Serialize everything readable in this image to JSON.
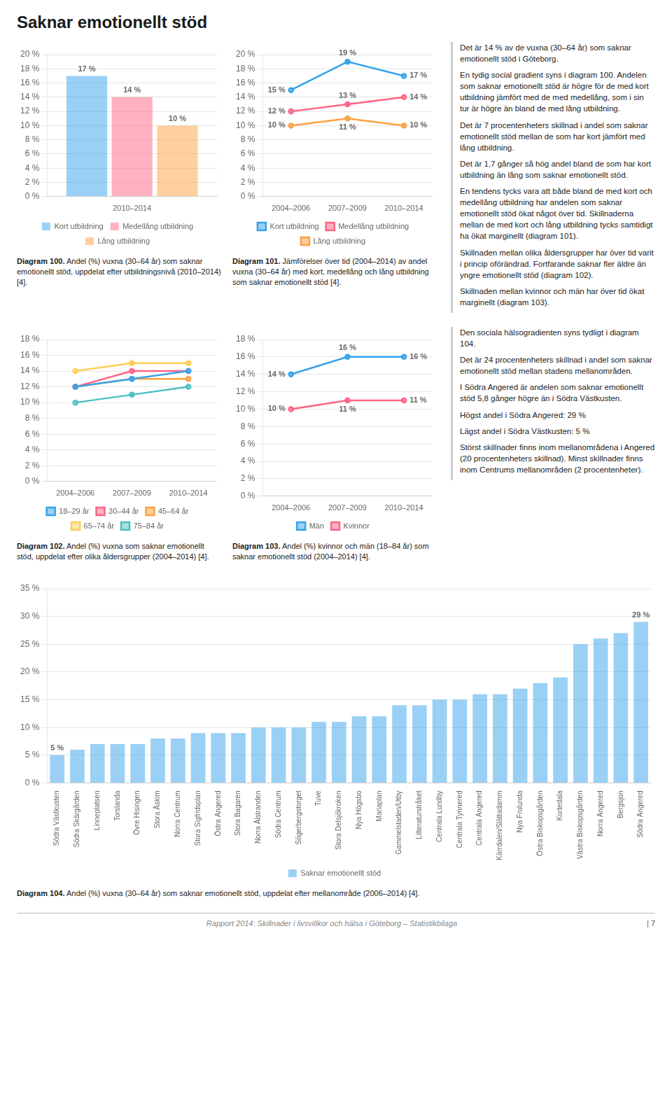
{
  "title": "Saknar emotionellt stöd",
  "annotations": [
    [
      "Det är 14 % av de vuxna (30–64 år) som saknar emotionellt stöd i Göteborg.",
      "En tydig social gradient syns i diagram 100. Andelen som saknar emotionellt stöd är högre för de med kort utbildning jämfört med de med medellång, som i sin tur är högre än bland de med lång utbildning.",
      "Det är 7 procentenheters skillnad i andel som saknar emotionellt stöd mellan de som har kort jämfört med lång utbildning.",
      "Det är 1,7 gånger så hög andel bland de som har kort utbildning än lång som saknar emotionellt stöd.",
      "En tendens tycks vara att både bland de med kort och medellång utbildning har andelen som saknar emotionellt stöd ökat något över tid. Skillnaderna mellan de med kort och lång utbildning tycks samtidigt ha ökat marginellt (diagram 101).",
      "Skillnaden mellan olika åldersgrupper har över tid varit i princip oförändrad. Fortfarande saknar fler äldre än yngre emotionellt stöd (diagram 102).",
      "Skillnaden mellan kvinnor och män har över tid ökat marginellt (diagram 103)."
    ],
    [
      "Den sociala hälsogradienten syns tydligt i diagram 104.",
      "Det är 24 procentenheters skillnad i andel som saknar emotionellt stöd mellan stadens mellanområden.",
      "I Södra Angered är andelen som saknar emotionellt stöd 5,8 gånger högre än i Södra Västkusten.",
      "Högst andel i Södra Angered: 29 %",
      "Lägst andel i Södra Västkusten: 5 %",
      "Störst skillnader finns inom mellanområdena i Angered (20 procentenheters skillnad). Minst skillnader finns inom Centrums mellanområden (2 procentenheter)."
    ]
  ],
  "footer": "Rapport 2014: Skillnader i livsvillkor och hälsa i Göteborg – Statistikbilaga",
  "page_number": "| 7",
  "chart_data": [
    {
      "type": "bar",
      "title": "Diagram 100.",
      "subtitle": "Andel (%) vuxna (30–64 år) som saknar emotionellt stöd, uppdelat efter utbildningsnivå (2010–2014) [4].",
      "categories": [
        "2010–2014"
      ],
      "series": [
        {
          "name": "Kort utbildning",
          "values": [
            17
          ],
          "value_labels": [
            "17 %"
          ]
        },
        {
          "name": "Medellång utbildning",
          "values": [
            14
          ],
          "value_labels": [
            "14 %"
          ]
        },
        {
          "name": "Lång utbildning",
          "values": [
            10
          ],
          "value_labels": [
            "10 %"
          ]
        }
      ],
      "ylim": [
        0,
        20
      ],
      "yticks": [
        {
          "value": 0,
          "label": "0 %"
        },
        {
          "value": 2,
          "label": "2 %"
        },
        {
          "value": 4,
          "label": "4 %"
        },
        {
          "value": 6,
          "label": "6 %"
        },
        {
          "value": 8,
          "label": "8 %"
        },
        {
          "value": 10,
          "label": "10 %"
        },
        {
          "value": 12,
          "label": "12 %"
        },
        {
          "value": 14,
          "label": "14 %"
        },
        {
          "value": 16,
          "label": "16 %"
        },
        {
          "value": 18,
          "label": "18 %"
        },
        {
          "value": 20,
          "label": "20 %"
        }
      ],
      "grid": "y",
      "legend": "bottom",
      "data_labels": true
    },
    {
      "type": "line",
      "title": "Diagram 101.",
      "subtitle": "Jämförelser över tid (2004–2014) av andel vuxna (30–64 år) med kort, medellång och lång utbildning som saknar emotionellt stöd [4].",
      "categories": [
        "2004–2006",
        "2007–2009",
        "2010–2014"
      ],
      "series": [
        {
          "name": "Kort utbildning",
          "values": [
            15,
            19,
            17
          ],
          "value_labels": [
            "15 %",
            "19 %",
            "17 %"
          ]
        },
        {
          "name": "Medellång utbildning",
          "values": [
            12,
            13,
            14
          ],
          "value_labels": [
            "12 %",
            "13 %",
            "14 %"
          ]
        },
        {
          "name": "Lång utbildning",
          "values": [
            10,
            11,
            10
          ],
          "value_labels": [
            "10 %",
            "11 %",
            "10 %"
          ]
        }
      ],
      "ylim": [
        0,
        20
      ],
      "yticks": [
        {
          "value": 0,
          "label": "0 %"
        },
        {
          "value": 2,
          "label": "2 %"
        },
        {
          "value": 4,
          "label": "4 %"
        },
        {
          "value": 6,
          "label": "6 %"
        },
        {
          "value": 8,
          "label": "8 %"
        },
        {
          "value": 10,
          "label": "10 %"
        },
        {
          "value": 12,
          "label": "12 %"
        },
        {
          "value": 14,
          "label": "14 %"
        },
        {
          "value": 16,
          "label": "16 %"
        },
        {
          "value": 18,
          "label": "18 %"
        },
        {
          "value": 20,
          "label": "20 %"
        }
      ],
      "grid": "y",
      "legend": "bottom",
      "data_labels": true
    },
    {
      "type": "line",
      "title": "Diagram 102.",
      "subtitle": "Andel (%) vuxna som saknar emotionellt stöd, uppdelat efter olika åldersgrupper (2004–2014) [4].",
      "categories": [
        "2004–2006",
        "2007–2009",
        "2010–2014"
      ],
      "series": [
        {
          "name": "18–29 år",
          "values": [
            12,
            13,
            14
          ]
        },
        {
          "name": "30–44 år",
          "values": [
            12,
            14,
            14
          ]
        },
        {
          "name": "45–64 år",
          "values": [
            12,
            13,
            13
          ]
        },
        {
          "name": "65–74 år",
          "values": [
            14,
            15,
            15
          ]
        },
        {
          "name": "75–84 år",
          "values": [
            10,
            11,
            12
          ]
        }
      ],
      "ylim": [
        0,
        18
      ],
      "yticks": [
        {
          "value": 0,
          "label": "0 %"
        },
        {
          "value": 2,
          "label": "2 %"
        },
        {
          "value": 4,
          "label": "4 %"
        },
        {
          "value": 6,
          "label": "6 %"
        },
        {
          "value": 8,
          "label": "8 %"
        },
        {
          "value": 10,
          "label": "10 %"
        },
        {
          "value": 12,
          "label": "12 %"
        },
        {
          "value": 14,
          "label": "14 %"
        },
        {
          "value": 16,
          "label": "16 %"
        },
        {
          "value": 18,
          "label": "18 %"
        }
      ],
      "grid": "y",
      "legend": "bottom"
    },
    {
      "type": "line",
      "title": "Diagram 103.",
      "subtitle": "Andel (%) kvinnor och män (18–84 år) som saknar emotionellt stöd (2004–2014) [4].",
      "categories": [
        "2004–2006",
        "2007–2009",
        "2010–2014"
      ],
      "series": [
        {
          "name": "Män",
          "values": [
            14,
            16,
            16
          ],
          "value_labels": [
            "14 %",
            "16 %",
            "16 %"
          ]
        },
        {
          "name": "Kvinnor",
          "values": [
            10,
            11,
            11
          ],
          "value_labels": [
            "10 %",
            "11 %",
            "11 %"
          ]
        }
      ],
      "ylim": [
        0,
        18
      ],
      "yticks": [
        {
          "value": 0,
          "label": "0 %"
        },
        {
          "value": 2,
          "label": "2 %"
        },
        {
          "value": 4,
          "label": "4 %"
        },
        {
          "value": 6,
          "label": "6 %"
        },
        {
          "value": 8,
          "label": "8 %"
        },
        {
          "value": 10,
          "label": "10 %"
        },
        {
          "value": 12,
          "label": "12 %"
        },
        {
          "value": 14,
          "label": "14 %"
        },
        {
          "value": 16,
          "label": "16 %"
        },
        {
          "value": 18,
          "label": "18 %"
        }
      ],
      "grid": "y",
      "legend": "bottom",
      "data_labels": true
    },
    {
      "type": "bar",
      "title": "Diagram 104.",
      "subtitle": "Andel (%) vuxna (30–64 år) som saknar emotionellt stöd, uppdelat efter mellanområde (2006–2014) [4].",
      "categories": [
        "Södra Västkusten",
        "Södra Skärgården",
        "Linneplatsen",
        "Torslanda",
        "Övre Hisingen",
        "Stora Åskim",
        "Norra Centrum",
        "Stora Sigfridsplan",
        "Östra Angered",
        "Stora Bagaren",
        "Norra Ålstranden",
        "Södra Centrum",
        "Sögerbergstorget",
        "Tuve",
        "Stora Delsjökroken",
        "Nya Högsbo",
        "Mariaplan",
        "Gammelstaden/Utby",
        "Litteraturstråket",
        "Centrala Lundby",
        "Centrala Tynnered",
        "Centrala Angered",
        "Kärrdalen/Slättadamm",
        "Nya Frolunda",
        "Östra Biskopsgården",
        "Kortedala",
        "Västra Biskopsgården",
        "Norra Angered",
        "Bergsjon",
        "Södra Angered"
      ],
      "series": [
        {
          "name": "Saknar emotionellt stöd",
          "values": [
            5,
            6,
            7,
            7,
            7,
            8,
            8,
            9,
            9,
            9,
            10,
            10,
            10,
            11,
            11,
            12,
            12,
            14,
            14,
            15,
            15,
            16,
            16,
            17,
            18,
            19,
            25,
            26,
            27,
            29
          ],
          "value_labels": [
            "5 %",
            null,
            null,
            null,
            null,
            null,
            null,
            null,
            null,
            null,
            null,
            null,
            null,
            null,
            null,
            null,
            null,
            null,
            null,
            null,
            null,
            null,
            null,
            null,
            null,
            null,
            null,
            null,
            null,
            "29 %"
          ]
        }
      ],
      "ylim": [
        0,
        35
      ],
      "yticks": [
        {
          "value": 0,
          "label": "0 %"
        },
        {
          "value": 5,
          "label": "5 %"
        },
        {
          "value": 10,
          "label": "10 %"
        },
        {
          "value": 15,
          "label": "15 %"
        },
        {
          "value": 20,
          "label": "20 %"
        },
        {
          "value": 25,
          "label": "25 %"
        },
        {
          "value": 30,
          "label": "30 %"
        },
        {
          "value": 35,
          "label": "35 %"
        }
      ],
      "grid": "y",
      "legend": "bottom",
      "data_labels": true
    }
  ]
}
